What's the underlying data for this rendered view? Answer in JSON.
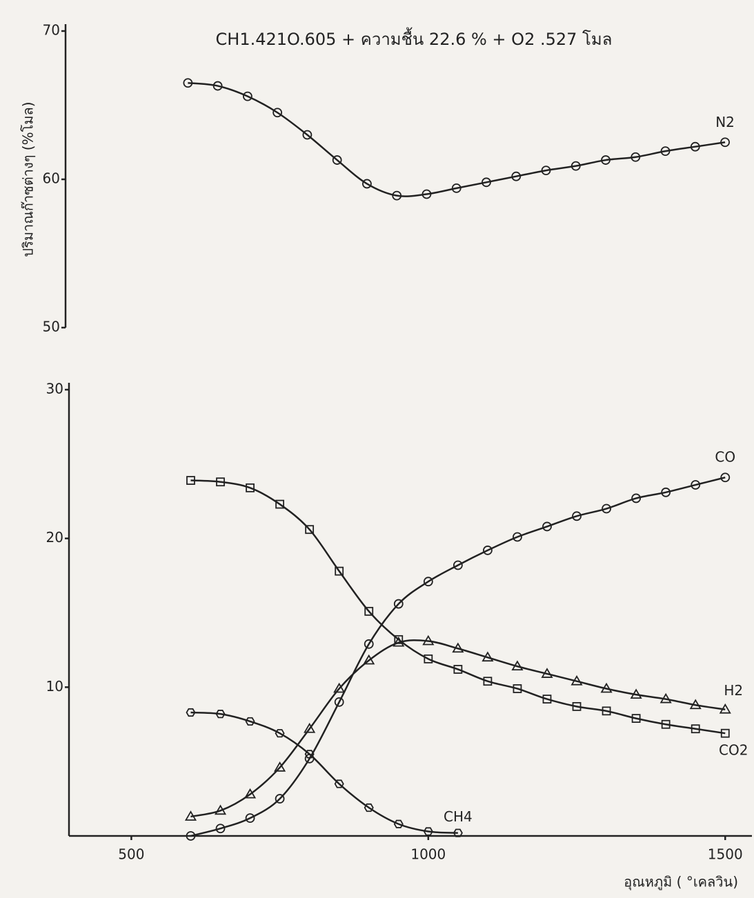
{
  "chart_data": [
    {
      "type": "line",
      "title": "CH1.421O.605 + ความชื้น 22.6 % + O2 .527 โมล",
      "ylabel": "ปริมาณก๊าซต่างๆ (%โมล)",
      "x": [
        600,
        650,
        700,
        750,
        800,
        850,
        900,
        950,
        1000,
        1050,
        1100,
        1150,
        1200,
        1250,
        1300,
        1350,
        1400,
        1450,
        1500
      ],
      "xlim": [
        395,
        1545
      ],
      "ylim": [
        50,
        70
      ],
      "yticks": [
        50,
        60,
        70
      ],
      "series": [
        {
          "name": "N2",
          "color": "#222222",
          "marker": "circle",
          "values": [
            66.5,
            66.3,
            65.6,
            64.5,
            63.0,
            61.3,
            59.7,
            58.9,
            59.0,
            59.4,
            59.8,
            60.2,
            60.6,
            60.9,
            61.3,
            61.5,
            61.9,
            62.2,
            62.5
          ]
        }
      ]
    },
    {
      "type": "line",
      "xlabel": "อุณหภูมิ ( °เคลวิน)",
      "x": [
        600,
        650,
        700,
        750,
        800,
        850,
        900,
        950,
        1000,
        1050,
        1100,
        1150,
        1200,
        1250,
        1300,
        1350,
        1400,
        1450,
        1500
      ],
      "xlim": [
        395,
        1545
      ],
      "xticks": [
        500,
        1000,
        1500
      ],
      "ylim": [
        0,
        30
      ],
      "yticks": [
        10,
        20,
        30
      ],
      "series": [
        {
          "name": "CO",
          "color": "#222222",
          "marker": "circle",
          "values": [
            0.0,
            0.5,
            1.2,
            2.5,
            5.2,
            9.0,
            12.9,
            15.6,
            17.1,
            18.2,
            19.2,
            20.1,
            20.8,
            21.5,
            22.0,
            22.7,
            23.1,
            23.6,
            24.1
          ]
        },
        {
          "name": "H2",
          "color": "#222222",
          "marker": "triangle",
          "values": [
            1.3,
            1.7,
            2.8,
            4.6,
            7.2,
            9.9,
            11.8,
            13.0,
            13.1,
            12.6,
            12.0,
            11.4,
            10.9,
            10.4,
            9.9,
            9.5,
            9.2,
            8.8,
            8.5
          ]
        },
        {
          "name": "CO2",
          "color": "#222222",
          "marker": "square",
          "values": [
            23.9,
            23.8,
            23.4,
            22.3,
            20.6,
            17.8,
            15.1,
            13.2,
            11.9,
            11.2,
            10.4,
            9.9,
            9.2,
            8.7,
            8.4,
            7.9,
            7.5,
            7.2,
            6.9
          ]
        },
        {
          "name": "CH4",
          "color": "#222222",
          "marker": "hexagon",
          "values": [
            8.3,
            8.2,
            7.7,
            6.9,
            5.5,
            3.5,
            1.9,
            0.8,
            0.3,
            0.2,
            null,
            null,
            null,
            null,
            null,
            null,
            null,
            null,
            null
          ]
        }
      ]
    }
  ]
}
